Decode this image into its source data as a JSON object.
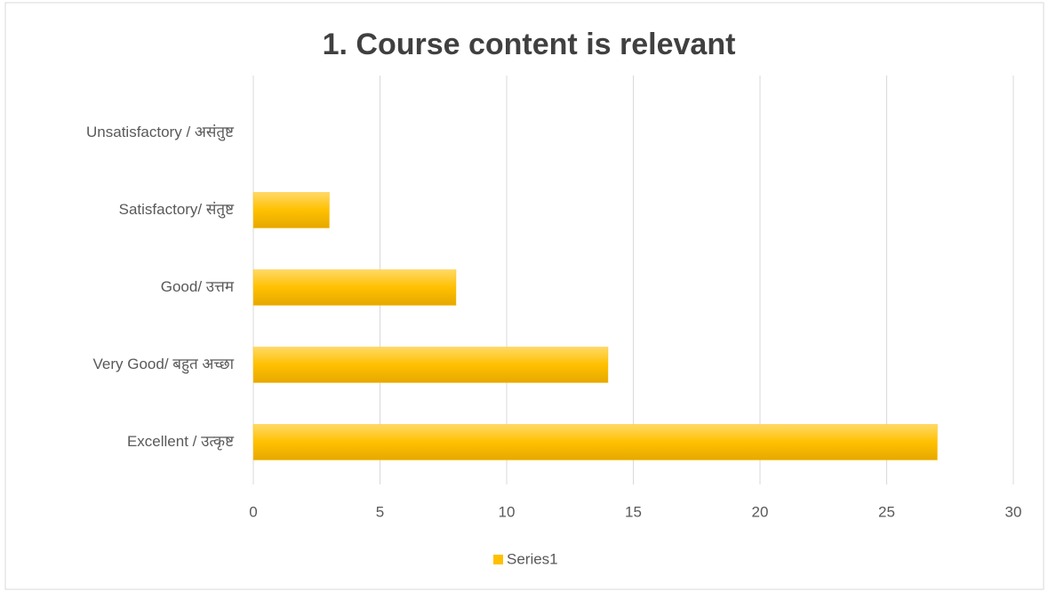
{
  "chart_data": {
    "type": "bar",
    "orientation": "horizontal",
    "title": "1. Course content is relevant",
    "categories": [
      "Unsatisfactory / असंतुष्ट",
      "Satisfactory/ संतुष्ट",
      "Good/ उत्तम",
      "Very Good/ बहुत  अच्छा",
      "Excellent / उत्कृष्ट"
    ],
    "series": [
      {
        "name": "Series1",
        "color": "#ffc000",
        "values": [
          0,
          3,
          8,
          14,
          27
        ]
      }
    ],
    "xlim": [
      0,
      30
    ],
    "xticks": [
      0,
      5,
      10,
      15,
      20,
      25,
      30
    ],
    "grid": true,
    "legend": "bottom"
  }
}
